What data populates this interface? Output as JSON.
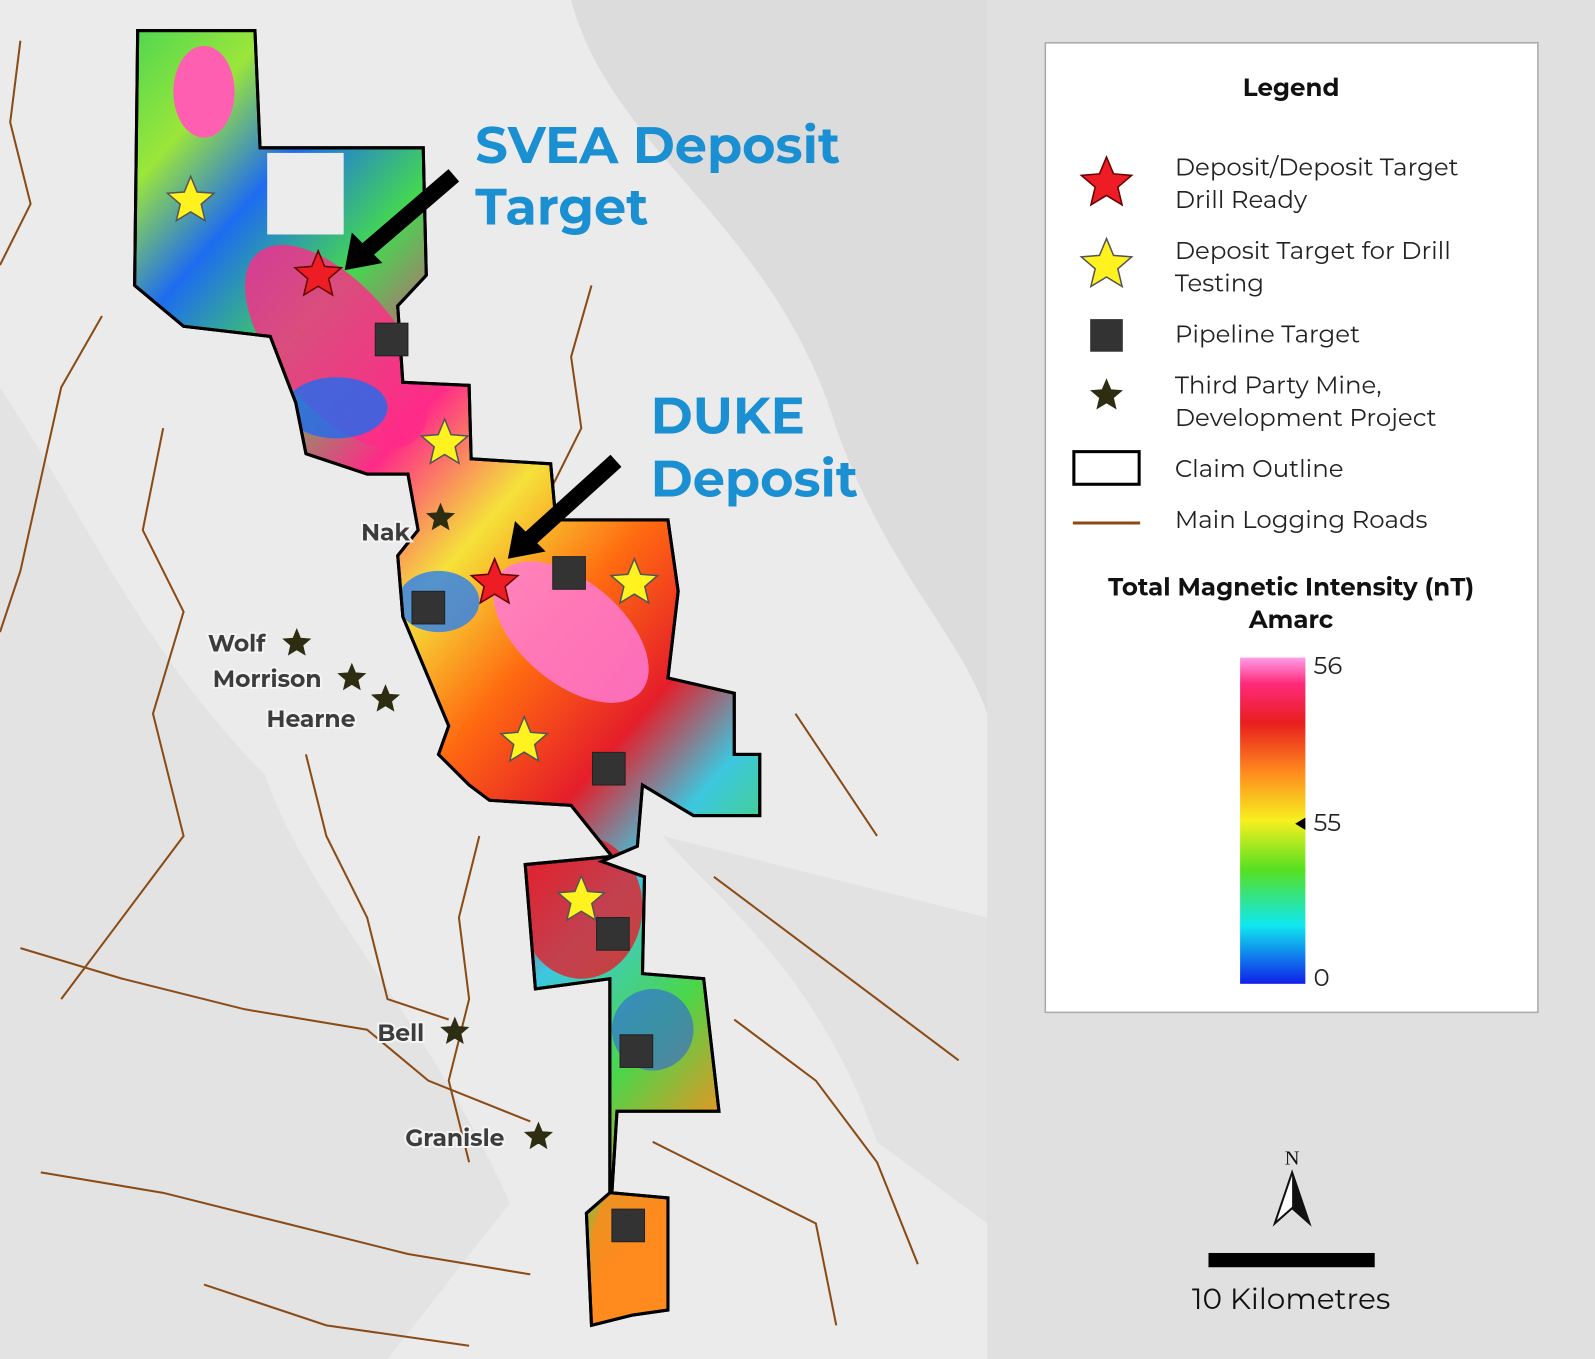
{
  "map": {
    "svea_label": [
      "SVEA Deposit",
      "Target"
    ],
    "duke_label": [
      "DUKE",
      "Deposit"
    ],
    "places": [
      "Nak",
      "Wolf",
      "Morrison",
      "Hearne",
      "Bell",
      "Granisle"
    ]
  },
  "legend": {
    "title": "Legend",
    "items": [
      {
        "lines": [
          "Deposit/Deposit Target",
          "Drill Ready"
        ]
      },
      {
        "lines": [
          "Deposit Target for Drill",
          "Testing"
        ]
      },
      {
        "lines": [
          "Pipeline Target"
        ]
      },
      {
        "lines": [
          "Third Party Mine,",
          "Development Project"
        ]
      },
      {
        "lines": [
          "Claim Outline"
        ]
      },
      {
        "lines": [
          "Main Logging Roads"
        ]
      }
    ],
    "colorbar": {
      "title": [
        "Total Magnetic Intensity (nT)",
        "Amarc"
      ],
      "labels": [
        "56",
        "55",
        "0"
      ]
    }
  },
  "scale_bar": {
    "label": "10 Kilometres"
  },
  "north": "N"
}
